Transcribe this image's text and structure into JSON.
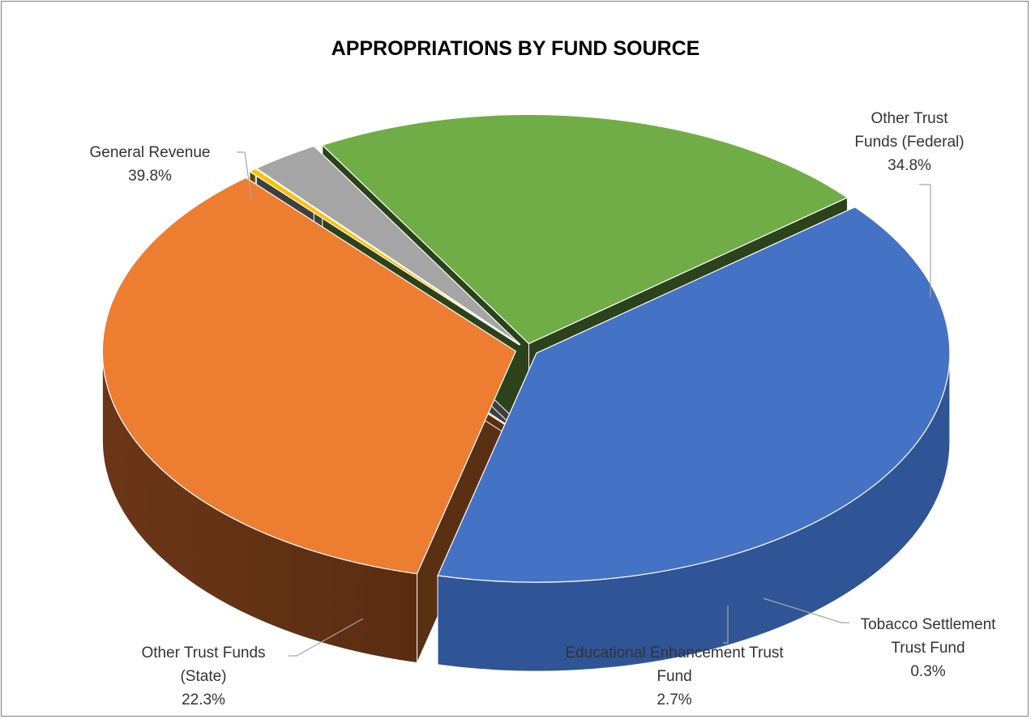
{
  "chart_data": {
    "type": "pie",
    "title": "APPROPRIATIONS BY FUND SOURCE",
    "style": "3d-exploded",
    "slices": [
      {
        "name": "General Revenue",
        "value": 39.8,
        "value_label": "39.8%",
        "label_lines": [
          "General Revenue",
          "39.8%"
        ],
        "color": "#4472C4"
      },
      {
        "name": "Other Trust Funds (Federal)",
        "value": 34.8,
        "value_label": "34.8%",
        "label_lines": [
          "Other Trust",
          "Funds (Federal)",
          "34.8%"
        ],
        "color": "#ED7D31"
      },
      {
        "name": "Tobacco Settlement Trust Fund",
        "value": 0.3,
        "value_label": "0.3%",
        "label_lines": [
          "Tobacco Settlement",
          "Trust Fund",
          "0.3%"
        ],
        "color": "#FFC000"
      },
      {
        "name": "Educational Enhancement Trust Fund",
        "value": 2.7,
        "value_label": "2.7%",
        "label_lines": [
          "Educational Enhancement Trust",
          "Fund",
          "2.7%"
        ],
        "color": "#A5A5A5"
      },
      {
        "name": "Other Trust Funds (State)",
        "value": 22.3,
        "value_label": "22.3%",
        "label_lines": [
          "Other Trust Funds",
          "(State)",
          "22.3%"
        ],
        "color": "#70AD47"
      }
    ]
  }
}
